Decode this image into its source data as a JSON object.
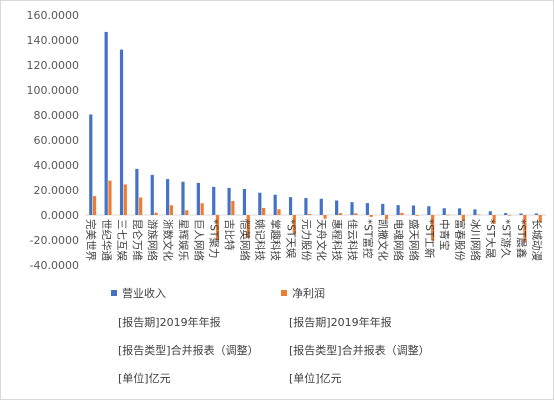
{
  "chart_data": {
    "type": "bar",
    "title": "",
    "xlabel": "",
    "ylabel": "",
    "ylim": [
      -40,
      160
    ],
    "yticks": [
      "160.0000",
      "140.0000",
      "120.0000",
      "100.0000",
      "80.0000",
      "60.0000",
      "40.0000",
      "20.0000",
      "0.0000",
      "-20.0000",
      "-40.0000"
    ],
    "grid": false,
    "legend_position": "bottom",
    "categories": [
      "完美世界",
      "世纪华通",
      "三七互娱",
      "昆仑万维",
      "游族网络",
      "浙数文化",
      "星辉娱乐",
      "巨人网络",
      "*ST聚力",
      "吉比特",
      "恺英网络",
      "姚记科技",
      "掌趣科技",
      "*ST天娱",
      "元力股份",
      "天舟文化",
      "惠程科技",
      "佳云科技",
      "*ST富控",
      "凯撒文化",
      "电魂网络",
      "盛天网络",
      "*ST工新",
      "中青宝",
      "富春股份",
      "冰川网络",
      "*ST大晟",
      "*ST游久",
      "*ST晨鑫",
      "长城动漫"
    ],
    "series": [
      {
        "name": "营业收入",
        "color": "#4472c4",
        "values": [
          80.4,
          146.5,
          132.3,
          36.9,
          32.1,
          28.7,
          26.6,
          25.7,
          22.5,
          21.7,
          20.8,
          17.8,
          16.2,
          14.3,
          13.6,
          13.0,
          11.6,
          10.3,
          9.5,
          8.9,
          7.9,
          7.6,
          7.0,
          5.4,
          5.3,
          4.5,
          3.0,
          1.5,
          1.2,
          1.2
        ]
      },
      {
        "name": "净利润",
        "color": "#ed7d31",
        "values": [
          15.1,
          27.5,
          24.5,
          14.0,
          1.8,
          7.8,
          3.8,
          9.4,
          -20.0,
          11.2,
          -18.5,
          5.6,
          4.6,
          -15.0,
          0.8,
          -3.0,
          1.5,
          1.4,
          -1.5,
          -3.5,
          1.7,
          -0.6,
          -20.5,
          0.3,
          -4.9,
          0.4,
          -7.0,
          -0.5,
          -22.0,
          -5.9
        ]
      }
    ]
  },
  "notes": {
    "report_period": "[报告期]2019年年报",
    "report_type": "[报告类型]合并报表（调整）",
    "unit": "[单位]亿元"
  }
}
